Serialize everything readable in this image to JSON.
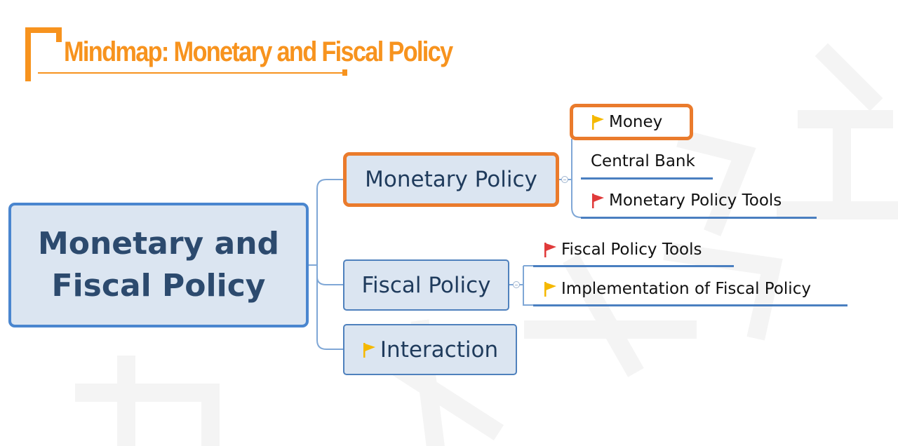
{
  "title": "Mindmap: Monetary and Fiscal Policy",
  "colors": {
    "title": "#f7931e",
    "highlight_border": "#ea7b2c",
    "node_fill": "#dbe5f1",
    "node_border": "#4f81bd",
    "node_text": "#1f3b5c",
    "flag_yellow": "#f5b800",
    "flag_red": "#e03a3a"
  },
  "mindmap": {
    "root": {
      "line1": "Monetary and",
      "line2": "Fiscal Policy"
    },
    "branches": [
      {
        "label": "Monetary Policy",
        "highlighted": true,
        "children": [
          {
            "label": "Money",
            "flag": "yellow-flag-icon",
            "highlighted": true
          },
          {
            "label": "Central Bank",
            "flag": null
          },
          {
            "label": "Monetary Policy Tools",
            "flag": "red-flag-icon"
          }
        ]
      },
      {
        "label": "Fiscal Policy",
        "children": [
          {
            "label": "Fiscal Policy Tools",
            "flag": "red-flag-icon"
          },
          {
            "label": "Implementation of Fiscal Policy",
            "flag": "yellow-flag-icon"
          }
        ]
      },
      {
        "label": "Interaction",
        "flag": "yellow-flag-icon",
        "children": []
      }
    ]
  }
}
